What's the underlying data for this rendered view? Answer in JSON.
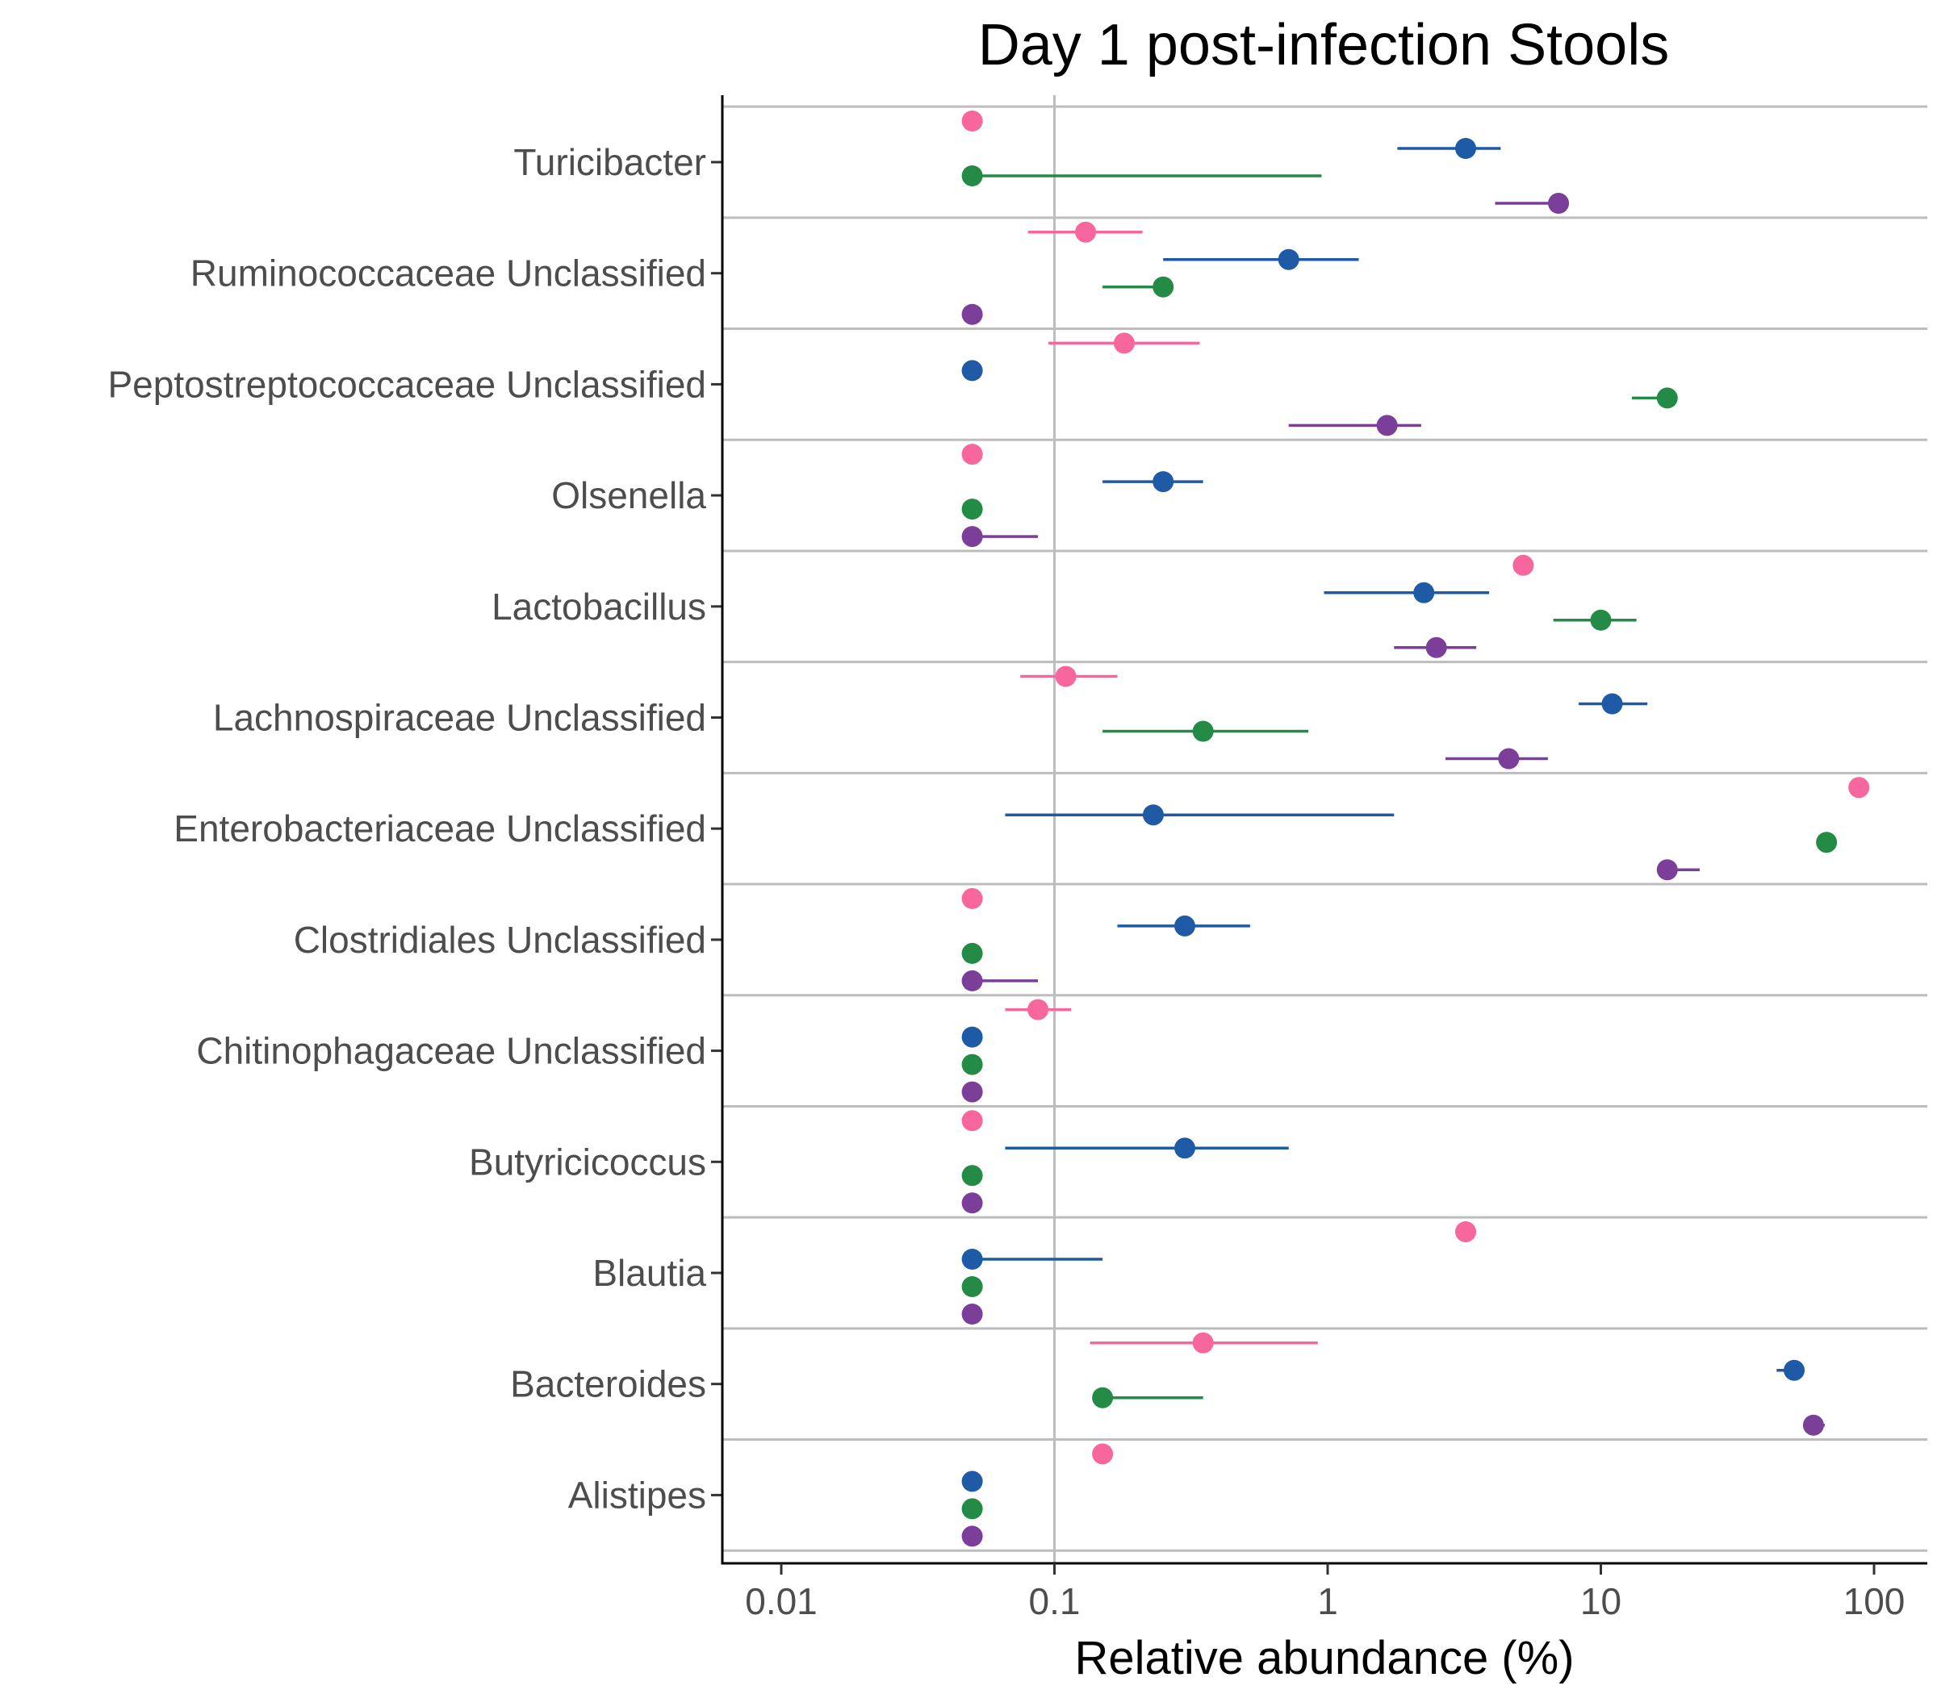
{
  "chart_data": {
    "type": "scatter",
    "title": "Day 1 post-infection Stools",
    "xlabel": "Relative abundance (%)",
    "ylabel": "",
    "xscale": "log10",
    "xlim": [
      0.0063,
      150
    ],
    "xticks": [
      0.01,
      0.1,
      1,
      10,
      100
    ],
    "xtick_labels": [
      "0.01",
      "0.1",
      "1",
      "10",
      "100"
    ],
    "reference_line": 0.1,
    "legend": "none",
    "series_colors": [
      "#f7679e",
      "#1f5aa6",
      "#238b45",
      "#7b3f9a"
    ],
    "categories": [
      {
        "name": "Turicibacter",
        "points": [
          {
            "value": 0.05,
            "low": null,
            "high": null
          },
          {
            "value": 3.2,
            "low": 1.8,
            "high": 4.3
          },
          {
            "value": 0.05,
            "low": 0.05,
            "high": 0.95
          },
          {
            "value": 7.0,
            "low": 4.1,
            "high": 7.2
          }
        ]
      },
      {
        "name": "Ruminococcaceae Unclassified",
        "points": [
          {
            "value": 0.13,
            "low": 0.08,
            "high": 0.21
          },
          {
            "value": 0.72,
            "low": 0.25,
            "high": 1.3
          },
          {
            "value": 0.25,
            "low": 0.15,
            "high": 0.26
          },
          {
            "value": 0.05,
            "low": null,
            "high": null
          }
        ]
      },
      {
        "name": "Peptostreptococcaceae Unclassified",
        "points": [
          {
            "value": 0.18,
            "low": 0.095,
            "high": 0.34
          },
          {
            "value": 0.05,
            "low": null,
            "high": null
          },
          {
            "value": 17.5,
            "low": 13.0,
            "high": 18.0
          },
          {
            "value": 1.65,
            "low": 0.72,
            "high": 2.2
          }
        ]
      },
      {
        "name": "Olsenella",
        "points": [
          {
            "value": 0.05,
            "low": null,
            "high": null
          },
          {
            "value": 0.25,
            "low": 0.15,
            "high": 0.35
          },
          {
            "value": 0.05,
            "low": null,
            "high": null
          },
          {
            "value": 0.05,
            "low": 0.05,
            "high": 0.087
          }
        ]
      },
      {
        "name": "Lactobacillus",
        "points": [
          {
            "value": 5.2,
            "low": null,
            "high": null
          },
          {
            "value": 2.25,
            "low": 0.97,
            "high": 3.9
          },
          {
            "value": 10.0,
            "low": 6.7,
            "high": 13.5
          },
          {
            "value": 2.5,
            "low": 1.75,
            "high": 3.5
          }
        ]
      },
      {
        "name": "Lachnospiraceae Unclassified",
        "points": [
          {
            "value": 0.11,
            "low": 0.075,
            "high": 0.17
          },
          {
            "value": 11.0,
            "low": 8.3,
            "high": 14.8
          },
          {
            "value": 0.35,
            "low": 0.15,
            "high": 0.85
          },
          {
            "value": 4.6,
            "low": 2.7,
            "high": 6.4
          }
        ]
      },
      {
        "name": "Enterobacteriaceae Unclassified",
        "points": [
          {
            "value": 88.0,
            "low": null,
            "high": null
          },
          {
            "value": 0.23,
            "low": 0.066,
            "high": 1.75
          },
          {
            "value": 67.0,
            "low": null,
            "high": null
          },
          {
            "value": 17.5,
            "low": 17.0,
            "high": 23.0
          }
        ]
      },
      {
        "name": "Clostridiales Unclassified",
        "points": [
          {
            "value": 0.05,
            "low": null,
            "high": null
          },
          {
            "value": 0.3,
            "low": 0.17,
            "high": 0.52
          },
          {
            "value": 0.05,
            "low": null,
            "high": null
          },
          {
            "value": 0.05,
            "low": 0.05,
            "high": 0.087
          }
        ]
      },
      {
        "name": "Chitinophagaceae Unclassified",
        "points": [
          {
            "value": 0.087,
            "low": 0.066,
            "high": 0.115
          },
          {
            "value": 0.05,
            "low": null,
            "high": null
          },
          {
            "value": 0.05,
            "low": null,
            "high": null
          },
          {
            "value": 0.05,
            "low": null,
            "high": null
          }
        ]
      },
      {
        "name": "Butyricicoccus",
        "points": [
          {
            "value": 0.05,
            "low": null,
            "high": null
          },
          {
            "value": 0.3,
            "low": 0.066,
            "high": 0.72
          },
          {
            "value": 0.05,
            "low": null,
            "high": null
          },
          {
            "value": 0.05,
            "low": null,
            "high": null
          }
        ]
      },
      {
        "name": "Blautia",
        "points": [
          {
            "value": 3.2,
            "low": null,
            "high": null
          },
          {
            "value": 0.05,
            "low": 0.05,
            "high": 0.15
          },
          {
            "value": 0.05,
            "low": null,
            "high": null
          },
          {
            "value": 0.05,
            "low": null,
            "high": null
          }
        ]
      },
      {
        "name": "Bacteroides",
        "points": [
          {
            "value": 0.35,
            "low": 0.135,
            "high": 0.92
          },
          {
            "value": 51.0,
            "low": 44.0,
            "high": 52.0
          },
          {
            "value": 0.15,
            "low": 0.15,
            "high": 0.35
          },
          {
            "value": 60.0,
            "low": 59.0,
            "high": 66.0
          }
        ]
      },
      {
        "name": "Alistipes",
        "points": [
          {
            "value": 0.15,
            "low": null,
            "high": null
          },
          {
            "value": 0.05,
            "low": null,
            "high": null
          },
          {
            "value": 0.05,
            "low": null,
            "high": null
          },
          {
            "value": 0.05,
            "low": null,
            "high": null
          }
        ]
      }
    ]
  }
}
